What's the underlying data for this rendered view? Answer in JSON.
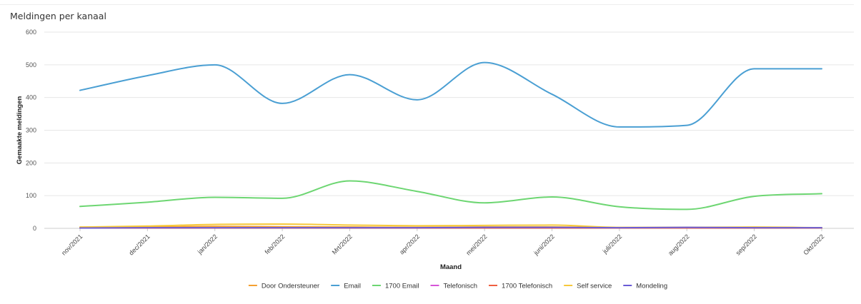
{
  "page": {
    "title": "Meldingen per kanaal"
  },
  "chart_data": {
    "type": "line",
    "title": "Meldingen per kanaal",
    "xlabel": "Maand",
    "ylabel": "Gemaakte meldingen",
    "ylim": [
      0,
      600
    ],
    "yticks": [
      0,
      100,
      200,
      300,
      400,
      500,
      600
    ],
    "grid": true,
    "legend_position": "bottom",
    "categories": [
      "nov/2021",
      "dec/2021",
      "jan/2022",
      "feb/2022",
      "Mrt/2022",
      "apr/2022",
      "mei/2022",
      "juni/2022",
      "juli/2022",
      "aug/2022",
      "sep/2022",
      "Okt/2022"
    ],
    "series": [
      {
        "name": "Door Ondersteuner",
        "color": "#f5a031",
        "values": [
          3,
          4,
          6,
          5,
          4,
          3,
          4,
          4,
          2,
          2,
          2,
          2
        ]
      },
      {
        "name": "Email",
        "color": "#4a9fd3",
        "values": [
          422,
          467,
          500,
          382,
          470,
          393,
          507,
          410,
          310,
          315,
          488,
          488
        ]
      },
      {
        "name": "1700 Email",
        "color": "#6dd672",
        "values": [
          67,
          80,
          95,
          92,
          145,
          113,
          78,
          96,
          66,
          58,
          98,
          106
        ]
      },
      {
        "name": "Telefonisch",
        "color": "#d654d8",
        "values": [
          1,
          1,
          1,
          1,
          1,
          1,
          1,
          1,
          1,
          1,
          1,
          1
        ]
      },
      {
        "name": "1700 Telefonisch",
        "color": "#ef5f41",
        "values": [
          1,
          1,
          1,
          1,
          1,
          1,
          1,
          1,
          1,
          1,
          1,
          1
        ]
      },
      {
        "name": "Self service",
        "color": "#f7c93b",
        "values": [
          4,
          7,
          12,
          13,
          10,
          8,
          9,
          10,
          3,
          3,
          4,
          2
        ]
      },
      {
        "name": "Mondeling",
        "color": "#6a5bd6",
        "values": [
          1,
          2,
          2,
          2,
          2,
          2,
          3,
          3,
          2,
          3,
          2,
          2
        ]
      }
    ]
  }
}
